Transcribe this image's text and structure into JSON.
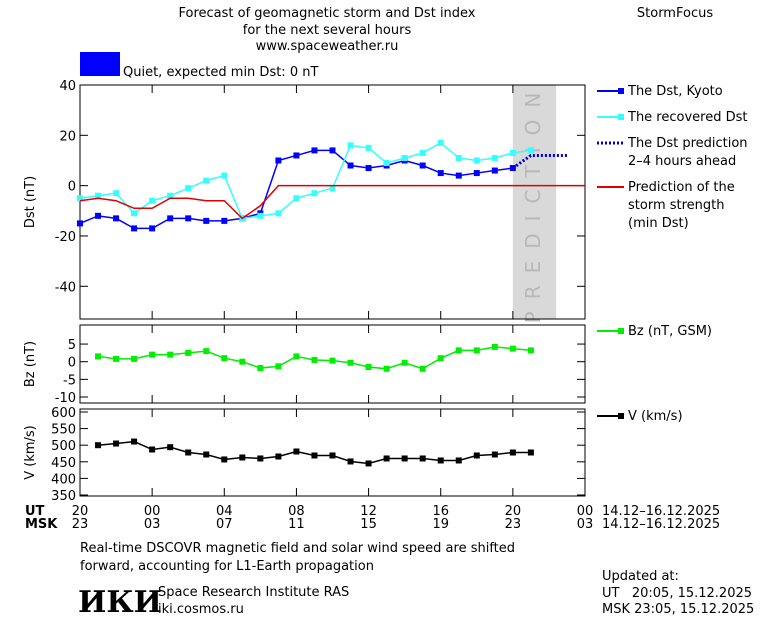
{
  "header": {
    "title_lines": [
      "Forecast of geomagnetic storm and Dst index",
      "for the next several hours",
      "www.spaceweather.ru"
    ],
    "brand": "StormFocus",
    "quiet_label": "Quiet, expected min Dst: 0 nT",
    "quiet_color": "#0000ff"
  },
  "x_axis": {
    "xlim": [
      0,
      28
    ],
    "ut_label": "UT",
    "msk_label": "MSK",
    "xticks": [
      {
        "value": 0,
        "label": "20"
      },
      {
        "value": 4,
        "label": "00"
      },
      {
        "value": 8,
        "label": "04"
      },
      {
        "value": 12,
        "label": "08"
      },
      {
        "value": 16,
        "label": "12"
      },
      {
        "value": 20,
        "label": "16"
      },
      {
        "value": 24,
        "label": "20"
      },
      {
        "value": 28,
        "label": "00"
      }
    ],
    "msk_ticks": [
      {
        "value": 0,
        "label": "23"
      },
      {
        "value": 4,
        "label": "03"
      },
      {
        "value": 8,
        "label": "07"
      },
      {
        "value": 12,
        "label": "11"
      },
      {
        "value": 16,
        "label": "15"
      },
      {
        "value": 20,
        "label": "19"
      },
      {
        "value": 24,
        "label": "23"
      },
      {
        "value": 28,
        "label": "03"
      }
    ],
    "ut_range": "14.12–16.12.2025",
    "msk_range": "14.12–16.12.2025"
  },
  "chart_data": [
    {
      "type": "line",
      "y_label": "Dst (nT)",
      "ylim": [
        -53,
        40
      ],
      "yticks": [
        -40,
        -20,
        0,
        20,
        40
      ],
      "prediction_band": {
        "label": "PREDICTION",
        "xlim": [
          24,
          26.4
        ],
        "color": "#d9d9d9"
      },
      "series": [
        {
          "name": [
            "The Dst, Kyoto"
          ],
          "color": "#0000ff",
          "marker": "square",
          "dashed": false,
          "x": [
            0,
            1,
            2,
            3,
            4,
            5,
            6,
            7,
            8,
            9,
            10,
            11,
            12,
            13,
            14,
            15,
            16,
            17,
            18,
            19,
            20,
            21,
            22,
            23,
            24
          ],
          "values": [
            -15,
            -12,
            -13,
            -17,
            -17,
            -13,
            -13,
            -14,
            -14,
            -13,
            -11,
            10,
            12,
            14,
            14,
            8,
            7,
            8,
            10,
            8,
            5,
            4,
            5,
            6,
            7
          ]
        },
        {
          "name": [
            "The recovered Dst"
          ],
          "color": "#33ffff",
          "marker": "square",
          "dashed": false,
          "x": [
            0,
            1,
            2,
            3,
            4,
            5,
            6,
            7,
            8,
            9,
            10,
            11,
            12,
            13,
            14,
            15,
            16,
            17,
            18,
            19,
            20,
            21,
            22,
            23,
            24,
            25
          ],
          "values": [
            -5,
            -4,
            -3,
            -11,
            -6,
            -4,
            -1,
            2,
            4,
            -13,
            -12,
            -11,
            -5,
            -3,
            -1,
            16,
            15,
            9,
            11,
            13,
            17,
            11,
            10,
            11,
            13,
            14
          ]
        },
        {
          "name": [
            "The Dst prediction",
            "2–4 hours ahead"
          ],
          "color": "#0000cc",
          "marker": "none",
          "dashed": true,
          "x": [
            24,
            25,
            26,
            27
          ],
          "values": [
            7,
            12,
            12,
            12
          ]
        },
        {
          "name": [
            "Prediction of the",
            "storm strength",
            "(min Dst)"
          ],
          "color": "#e00000",
          "marker": "none",
          "dashed": false,
          "x": [
            0,
            1,
            2,
            3,
            4,
            5,
            6,
            7,
            8,
            9,
            10,
            11,
            28
          ],
          "values": [
            -6,
            -5,
            -6,
            -9,
            -9,
            -5,
            -5,
            -6,
            -6,
            -13,
            -8,
            0,
            0
          ]
        }
      ]
    },
    {
      "type": "line",
      "y_label": "Bz (nT)",
      "ylim": [
        -11.7,
        10.4
      ],
      "yticks": [
        -10,
        -5,
        0,
        5
      ],
      "series": [
        {
          "name": [
            "Bz (nT, GSM)"
          ],
          "color": "#00ee00",
          "marker": "square",
          "dashed": false,
          "x": [
            1,
            2,
            3,
            4,
            5,
            6,
            7,
            8,
            9,
            10,
            11,
            12,
            13,
            14,
            15,
            16,
            17,
            18,
            19,
            20,
            21,
            22,
            23,
            24,
            25
          ],
          "values": [
            1.5,
            0.8,
            0.8,
            2,
            2,
            2.5,
            3,
            1,
            0,
            -1.8,
            -1.3,
            1.5,
            0.5,
            0.3,
            -0.3,
            -1.5,
            -2,
            -0.3,
            -2,
            1,
            3.2,
            3.2,
            4.2,
            3.7,
            3.2
          ]
        }
      ]
    },
    {
      "type": "line",
      "y_label": "V (km/s)",
      "ylim": [
        347,
        609
      ],
      "yticks": [
        350,
        400,
        450,
        500,
        550,
        600
      ],
      "series": [
        {
          "name": [
            "V (km/s)"
          ],
          "color": "#000000",
          "marker": "square",
          "dashed": false,
          "x": [
            1,
            2,
            3,
            4,
            5,
            6,
            7,
            8,
            9,
            10,
            11,
            12,
            13,
            14,
            15,
            16,
            17,
            18,
            19,
            20,
            21,
            22,
            23,
            24,
            25
          ],
          "values": [
            500,
            505,
            511,
            487,
            494,
            478,
            472,
            457,
            463,
            460,
            466,
            481,
            469,
            469,
            451,
            445,
            460,
            460,
            460,
            454,
            454,
            469,
            472,
            478,
            478
          ]
        }
      ]
    }
  ],
  "footer": {
    "note_lines": [
      "Real-time DSCOVR magnetic field and solar wind speed are shifted",
      "forward, accounting for L1-Earth propagation"
    ],
    "logo": "ИКИ",
    "institute": "Space Research Institute RAS",
    "site": "iki.cosmos.ru",
    "updated_label": "Updated at:",
    "updated_ut": "UT   20:05, 15.12.2025",
    "updated_msk": "MSK 23:05, 15.12.2025"
  }
}
